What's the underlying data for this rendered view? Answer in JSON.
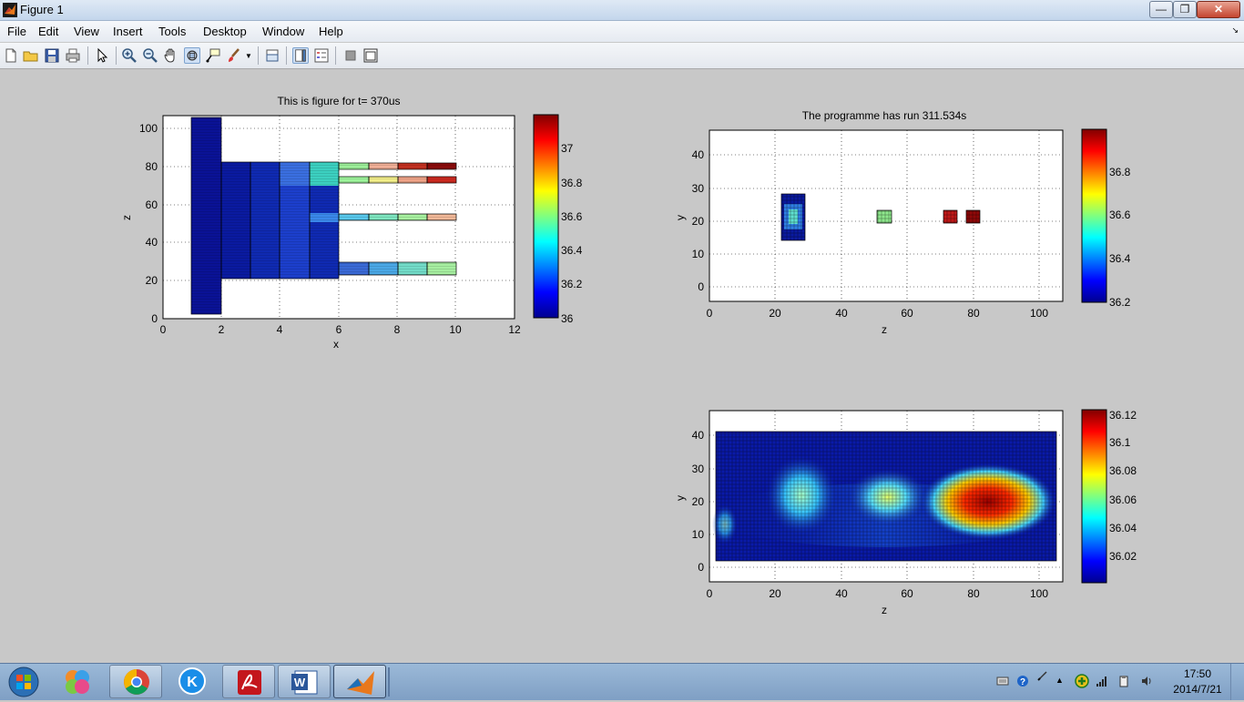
{
  "window": {
    "title": "Figure 1",
    "minimize_icon": "minimize-icon",
    "maximize_icon": "restore-icon",
    "close_icon": "close-icon"
  },
  "menu": [
    "File",
    "Edit",
    "View",
    "Insert",
    "Tools",
    "Desktop",
    "Window",
    "Help"
  ],
  "toolbar": [
    "new-figure-icon",
    "open-file-icon",
    "save-icon",
    "print-icon",
    "edit-plot-icon",
    "zoom-in-icon",
    "zoom-out-icon",
    "pan-icon",
    "rotate-3d-icon",
    "data-cursor-icon",
    "brush-icon",
    "link-plot-icon",
    "colorbar-icon",
    "legend-icon",
    "hide-plot-tools-icon",
    "show-plot-tools-icon"
  ],
  "plot1": {
    "title": "This is figure for t= 370us",
    "xlabel": "x",
    "ylabel": "z",
    "xticks": [
      "0",
      "2",
      "4",
      "6",
      "8",
      "10",
      "12"
    ],
    "yticks": [
      "0",
      "20",
      "40",
      "60",
      "80",
      "100"
    ],
    "colorbar_ticks": [
      "36",
      "36.2",
      "36.4",
      "36.6",
      "36.8",
      "37"
    ]
  },
  "plot2": {
    "title": "The programme has run 311.534s",
    "xlabel": "z",
    "ylabel": "y",
    "xticks": [
      "0",
      "20",
      "40",
      "60",
      "80",
      "100"
    ],
    "yticks": [
      "0",
      "10",
      "20",
      "30",
      "40"
    ],
    "colorbar_ticks": [
      "36.2",
      "36.4",
      "36.6",
      "36.8"
    ]
  },
  "plot3": {
    "title": "",
    "xlabel": "z",
    "ylabel": "y",
    "xticks": [
      "0",
      "20",
      "40",
      "60",
      "80",
      "100"
    ],
    "yticks": [
      "0",
      "10",
      "20",
      "30",
      "40"
    ],
    "colorbar_ticks": [
      "36.02",
      "36.04",
      "36.06",
      "36.08",
      "36.1",
      "36.12"
    ]
  },
  "taskbar": {
    "start": "windows-start-icon",
    "apps": [
      "photo-viewer-icon",
      "chrome-icon",
      "kugou-icon",
      "acrobat-icon",
      "word-icon",
      "matlab-icon"
    ],
    "tray": [
      "keyboard-icon",
      "help-icon",
      "pen-icon",
      "show-hidden-icons-arrow",
      "network-app-icon",
      "signal-icon",
      "removable-drive-icon",
      "volume-icon"
    ],
    "time": "17:50",
    "date": "2014/7/21"
  }
}
